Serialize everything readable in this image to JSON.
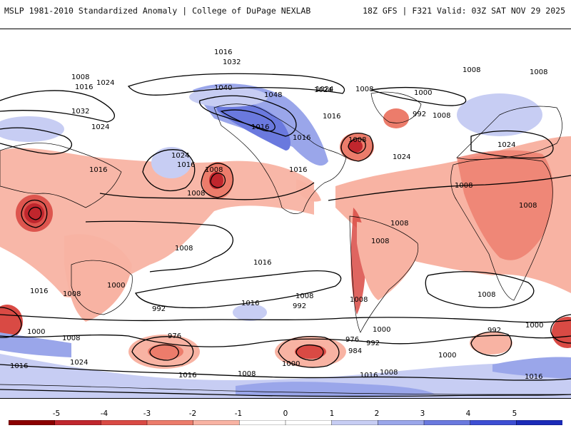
{
  "header": {
    "title_left": "MSLP 1981-2010 Standardized Anomaly | College of DuPage NEXLAB",
    "title_right": "18Z GFS | F321 Valid: 03Z SAT NOV 29 2025"
  },
  "map": {
    "description_type": "global-equirectangular",
    "isobar_labels": [
      {
        "text": "1016",
        "id": "l1"
      },
      {
        "text": "1032",
        "id": "l2"
      },
      {
        "text": "1040",
        "id": "l3"
      },
      {
        "text": "1048",
        "id": "l4"
      },
      {
        "text": "1024",
        "id": "l5"
      },
      {
        "text": "1008",
        "id": "l6"
      },
      {
        "text": "1016",
        "id": "l7"
      },
      {
        "text": "1024",
        "id": "l8"
      },
      {
        "text": "1032",
        "id": "l9"
      },
      {
        "text": "1024",
        "id": "l10"
      },
      {
        "text": "1016",
        "id": "l11"
      },
      {
        "text": "1024",
        "id": "l12"
      },
      {
        "text": "1016",
        "id": "l13"
      },
      {
        "text": "1008",
        "id": "l14"
      },
      {
        "text": "1008",
        "id": "l15"
      },
      {
        "text": "1024",
        "id": "l16"
      },
      {
        "text": "1016",
        "id": "l17"
      },
      {
        "text": "1008",
        "id": "l18"
      },
      {
        "text": "1016",
        "id": "l19"
      },
      {
        "text": "1024",
        "id": "l20"
      },
      {
        "text": "1000",
        "id": "l21"
      },
      {
        "text": "992",
        "id": "l22"
      },
      {
        "text": "1008",
        "id": "l23"
      },
      {
        "text": "1008",
        "id": "l24"
      },
      {
        "text": "1008",
        "id": "l25"
      },
      {
        "text": "1024",
        "id": "l26"
      },
      {
        "text": "1008",
        "id": "l27"
      },
      {
        "text": "1008",
        "id": "l28"
      },
      {
        "text": "1008",
        "id": "l29"
      },
      {
        "text": "1008",
        "id": "l30"
      },
      {
        "text": "1016",
        "id": "l31"
      },
      {
        "text": "1016",
        "id": "l32"
      },
      {
        "text": "1008",
        "id": "l33"
      },
      {
        "text": "1000",
        "id": "l34"
      },
      {
        "text": "1008",
        "id": "l35"
      },
      {
        "text": "1016",
        "id": "l36"
      },
      {
        "text": "1008",
        "id": "l37"
      },
      {
        "text": "992",
        "id": "l38"
      },
      {
        "text": "976",
        "id": "l39"
      },
      {
        "text": "1016",
        "id": "l40"
      },
      {
        "text": "1008",
        "id": "l41"
      },
      {
        "text": "992",
        "id": "l42"
      },
      {
        "text": "1016",
        "id": "l43"
      },
      {
        "text": "1000",
        "id": "l44"
      },
      {
        "text": "976",
        "id": "l45"
      },
      {
        "text": "992",
        "id": "l46"
      },
      {
        "text": "984",
        "id": "l47"
      },
      {
        "text": "1008",
        "id": "l48"
      },
      {
        "text": "992",
        "id": "l49"
      },
      {
        "text": "1000",
        "id": "l50"
      },
      {
        "text": "1008",
        "id": "l51"
      },
      {
        "text": "1000",
        "id": "l52"
      },
      {
        "text": "1008",
        "id": "l53"
      },
      {
        "text": "1016",
        "id": "l54"
      },
      {
        "text": "1024",
        "id": "l55"
      },
      {
        "text": "1016",
        "id": "l56"
      },
      {
        "text": "1008",
        "id": "l57"
      },
      {
        "text": "1000",
        "id": "l58"
      },
      {
        "text": "1016",
        "id": "l59"
      },
      {
        "text": "1008",
        "id": "l60"
      },
      {
        "text": "1016",
        "id": "l61"
      },
      {
        "text": "1000",
        "id": "l62"
      }
    ]
  },
  "colorbar": {
    "tick_labels": [
      "-5",
      "-4",
      "-3",
      "-2",
      "-1",
      "0",
      "1",
      "2",
      "3",
      "4",
      "5"
    ],
    "colors": [
      "#8b0000",
      "#c0262d",
      "#d94a44",
      "#ec7c6b",
      "#f8b3a3",
      "#ffffff",
      "#ffffff",
      "#c7cdf3",
      "#9aa6ea",
      "#6a79de",
      "#3d4ed3",
      "#1b2bb8"
    ]
  }
}
